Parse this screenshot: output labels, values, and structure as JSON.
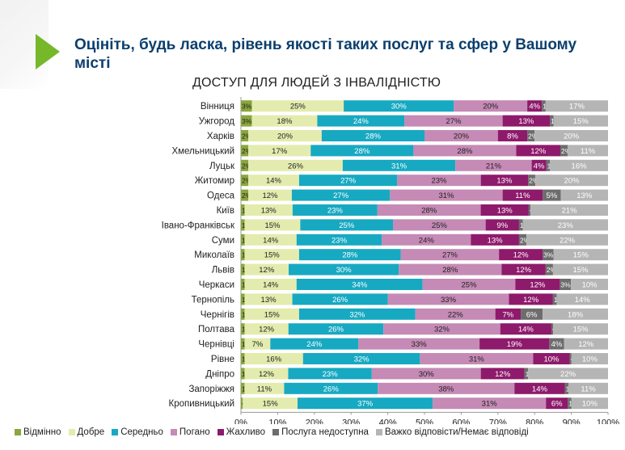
{
  "slide": {
    "title": "Оцініть, будь ласка, рівень якості таких послуг та сфер у Вашому місті"
  },
  "chart_data": {
    "type": "bar",
    "orientation": "horizontal",
    "stacked": true,
    "title": "ДОСТУП ДЛЯ ЛЮДЕЙ З ІНВАЛІДНІСТЮ",
    "categories": [
      "Вінниця",
      "Ужгород",
      "Харків",
      "Хмельницький",
      "Луцьк",
      "Житомир",
      "Одеса",
      "Київ",
      "Івано-Франківськ",
      "Суми",
      "Миколаїв",
      "Львів",
      "Черкаси",
      "Тернопіль",
      "Чернігів",
      "Полтава",
      "Чернівці",
      "Рівне",
      "Дніпро",
      "Запоріжжя",
      "Кропивницький"
    ],
    "xlim": [
      0,
      100
    ],
    "xticks": [
      "0%",
      "10%",
      "20%",
      "30%",
      "40%",
      "50%",
      "60%",
      "70%",
      "80%",
      "90%",
      "100%"
    ],
    "legend_position": "bottom",
    "series": [
      {
        "name": "Відмінно",
        "color": "#8aa63c",
        "values": [
          3,
          3,
          2,
          2,
          2,
          2,
          2,
          1,
          1,
          1,
          1,
          1,
          1,
          1,
          1,
          1,
          1,
          1,
          1,
          1,
          0.5
        ],
        "labels": [
          "3%",
          "3%",
          "2%",
          "2%",
          "2%",
          "2%",
          "2%",
          "1%",
          "1%",
          "1%",
          "1%",
          "1%",
          "1%",
          "1%",
          "1%",
          "1%",
          "1%",
          "1%",
          "1%",
          "1%",
          "<1%"
        ]
      },
      {
        "name": "Добре",
        "color": "#e3ecae",
        "values": [
          25,
          18,
          20,
          17,
          26,
          14,
          12,
          13,
          15,
          14,
          15,
          12,
          14,
          13,
          15,
          12,
          7,
          16,
          12,
          11,
          15
        ],
        "labels": [
          "25%",
          "18%",
          "20%",
          "17%",
          "26%",
          "14%",
          "12%",
          "13%",
          "15%",
          "14%",
          "15%",
          "12%",
          "14%",
          "13%",
          "15%",
          "12%",
          "7%",
          "16%",
          "12%",
          "11%",
          "15%"
        ]
      },
      {
        "name": "Середньо",
        "color": "#17a9c2",
        "values": [
          30,
          24,
          28,
          28,
          31,
          27,
          27,
          23,
          25,
          23,
          28,
          30,
          34,
          26,
          32,
          26,
          24,
          32,
          23,
          26,
          37
        ],
        "labels": [
          "30%",
          "24%",
          "28%",
          "28%",
          "31%",
          "27%",
          "27%",
          "23%",
          "25%",
          "23%",
          "28%",
          "30%",
          "34%",
          "26%",
          "32%",
          "26%",
          "24%",
          "32%",
          "23%",
          "26%",
          "37%"
        ]
      },
      {
        "name": "Погано",
        "color": "#c58ab5",
        "values": [
          20,
          27,
          20,
          28,
          21,
          23,
          31,
          28,
          25,
          24,
          27,
          28,
          25,
          33,
          22,
          32,
          33,
          31,
          30,
          38,
          31
        ],
        "labels": [
          "20%",
          "27%",
          "20%",
          "28%",
          "21%",
          "23%",
          "31%",
          "28%",
          "25%",
          "24%",
          "27%",
          "28%",
          "25%",
          "33%",
          "22%",
          "32%",
          "33%",
          "31%",
          "30%",
          "38%",
          "31%"
        ]
      },
      {
        "name": "Жахливо",
        "color": "#8e1a6c",
        "values": [
          4,
          13,
          8,
          12,
          4,
          13,
          11,
          13,
          9,
          13,
          12,
          12,
          12,
          12,
          7,
          14,
          19,
          10,
          12,
          14,
          6
        ],
        "labels": [
          "4%",
          "13%",
          "8%",
          "12%",
          "4%",
          "13%",
          "11%",
          "13%",
          "9%",
          "13%",
          "12%",
          "12%",
          "12%",
          "12%",
          "7%",
          "14%",
          "19%",
          "10%",
          "12%",
          "14%",
          "6%"
        ]
      },
      {
        "name": "Послуга недоступна",
        "color": "#6d6d6d",
        "values": [
          1,
          1,
          2,
          2,
          1,
          2,
          5,
          0.5,
          1,
          2,
          3,
          2,
          3,
          1,
          6,
          0.5,
          4,
          0.5,
          1,
          1,
          1
        ],
        "labels": [
          "1%",
          "1%",
          "2%",
          "2%",
          "1%",
          "2%",
          "5%",
          "<1%",
          "1%",
          "2%",
          "3%",
          "2%",
          "3%",
          "1%",
          "6%",
          "<1%",
          "4%",
          "<1%",
          "1%",
          "1%",
          "1%"
        ]
      },
      {
        "name": "Важко відповісти/Немає відповіді",
        "color": "#b5b5b5",
        "values": [
          17,
          15,
          20,
          11,
          16,
          20,
          13,
          21,
          23,
          22,
          15,
          15,
          10,
          14,
          18,
          15,
          12,
          10,
          22,
          11,
          10
        ],
        "labels": [
          "17%",
          "15%",
          "20%",
          "11%",
          "16%",
          "20%",
          "13%",
          "21%",
          "23%",
          "22%",
          "15%",
          "15%",
          "10%",
          "14%",
          "18%",
          "15%",
          "12%",
          "10%",
          "22%",
          "11%",
          "10%"
        ]
      }
    ]
  }
}
